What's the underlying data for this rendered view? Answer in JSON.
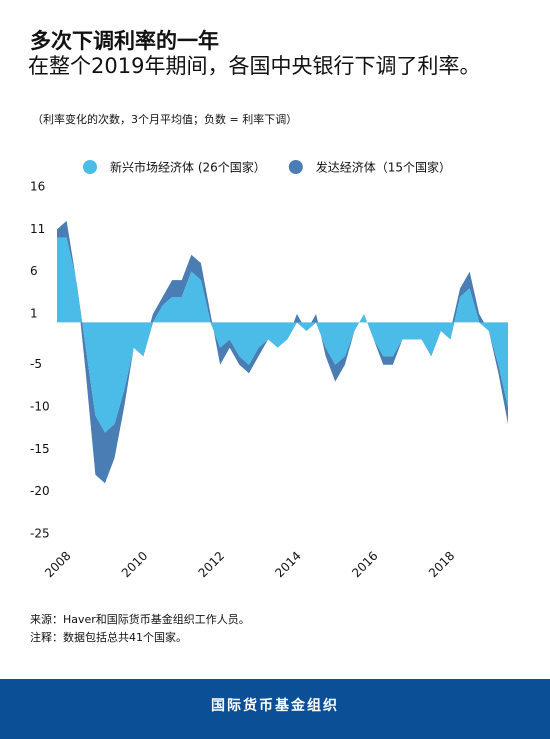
{
  "chart_data": {
    "type": "stacked_area",
    "title": "多次下调利率的一年",
    "subtitle": "在整个2019年期间，各国中央银行下调了利率。",
    "note": "（利率变化的次数，3个月平均值；负数 = 利率下调）",
    "x": [
      2008,
      2008.25,
      2008.5,
      2008.75,
      2009,
      2009.25,
      2009.5,
      2009.75,
      2010,
      2010.25,
      2010.5,
      2010.75,
      2011,
      2011.25,
      2011.5,
      2011.75,
      2012,
      2012.25,
      2012.5,
      2012.75,
      2013,
      2013.25,
      2013.5,
      2013.75,
      2014,
      2014.25,
      2014.5,
      2014.75,
      2015,
      2015.25,
      2015.5,
      2015.75,
      2016,
      2016.25,
      2016.5,
      2016.75,
      2017,
      2017.25,
      2017.5,
      2017.75,
      2018,
      2018.25,
      2018.5,
      2018.75,
      2019,
      2019.25,
      2019.5,
      2019.75
    ],
    "series": [
      {
        "name": "新兴市场经济体 (26个国家）",
        "color": "#4bbbe8",
        "values": [
          10,
          10,
          5,
          -3,
          -11,
          -13,
          -12,
          -8,
          -3,
          -4,
          0,
          2,
          3,
          3,
          6,
          5,
          0,
          -3,
          -2,
          -4,
          -5,
          -3,
          -2,
          -3,
          -2,
          0,
          -1,
          0,
          -3,
          -5,
          -4,
          -1,
          1,
          -2,
          -4,
          -4,
          -2,
          -2,
          -2,
          -4,
          -1,
          -2,
          3,
          4,
          0,
          -1,
          -5,
          -10
        ]
      },
      {
        "name": "发达经济体（15个国家）",
        "color": "#4a7db3",
        "values": [
          1,
          2,
          0,
          -3,
          -7,
          -6,
          -4,
          -2,
          0,
          1,
          1,
          1,
          2,
          2,
          2,
          2,
          1,
          -2,
          -1,
          -1,
          -1,
          -1,
          0,
          0,
          0,
          1,
          0,
          1,
          -1,
          -2,
          -1,
          0,
          0,
          0,
          -1,
          -1,
          0,
          1,
          1,
          1,
          1,
          1,
          1,
          2,
          1,
          0,
          -1,
          -2
        ]
      }
    ],
    "xlim": [
      2008,
      2019.75
    ],
    "xticks": [
      2008,
      2010,
      2012,
      2014,
      2016,
      2018
    ],
    "ylim": [
      -25,
      16
    ],
    "yticks": [
      16,
      11,
      6,
      1,
      -5,
      -10,
      -15,
      -20,
      -25
    ],
    "legend": "top",
    "source": "来源：Haver和国际货币基金组织工作人员。",
    "footnote": "注释：数据包括总共41个国家。",
    "footer": "国际货币基金组织"
  }
}
